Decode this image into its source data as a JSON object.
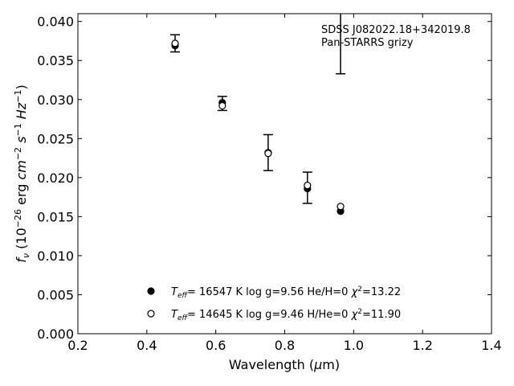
{
  "chart_data": {
    "type": "scatter",
    "title": "",
    "xlabel": "Wavelength (μm)",
    "ylabel": "f_ν (10^-26 erg cm^-2 s^-1 Hz^-1)",
    "xlim": [
      0.2,
      1.4
    ],
    "ylim": [
      0.0,
      0.041
    ],
    "x_ticks": [
      0.2,
      0.4,
      0.6,
      0.8,
      1.0,
      1.2,
      1.4
    ],
    "y_ticks": [
      0.0,
      0.005,
      0.01,
      0.015,
      0.02,
      0.025,
      0.03,
      0.035,
      0.04
    ],
    "x_tick_labels": [
      "0.2",
      "0.4",
      "0.6",
      "0.8",
      "1.0",
      "1.2",
      "1.4"
    ],
    "y_tick_labels": [
      "0.000",
      "0.005",
      "0.010",
      "0.015",
      "0.020",
      "0.025",
      "0.030",
      "0.035",
      "0.040"
    ],
    "grid": false,
    "annotation": [
      "SDSS J082022.18+342019.8",
      "Pan-STARRS grizy"
    ],
    "observed": {
      "x": [
        0.482,
        0.619,
        0.752,
        0.866,
        0.962
      ],
      "y": [
        0.0372,
        0.0295,
        0.0232,
        0.0187,
        0.0435
      ],
      "yerr": [
        0.0011,
        0.0009,
        0.0023,
        0.002,
        0.0102
      ]
    },
    "series": [
      {
        "name": "T_eff= 16547 K  log g=9.56  He/H=0  χ²=13.22",
        "marker": "filled-circle",
        "x": [
          0.482,
          0.619,
          0.752,
          0.866,
          0.962
        ],
        "y": [
          0.0369,
          0.0296,
          0.0232,
          0.0186,
          0.0157
        ]
      },
      {
        "name": "T_eff= 14645 K  log g=9.46  H/He=0  χ²=11.90",
        "marker": "open-circle",
        "x": [
          0.482,
          0.619,
          0.752,
          0.866,
          0.962
        ],
        "y": [
          0.0372,
          0.0292,
          0.0231,
          0.019,
          0.0163
        ]
      }
    ],
    "legend": {
      "placement": "bottom-center",
      "entries": [
        {
          "marker": "filled-circle",
          "teff": "= 16547 K  log g=9.56  He/H=0  ",
          "chi_val": "=13.22"
        },
        {
          "marker": "open-circle",
          "teff": "= 14645 K  log g=9.46  H/He=0  ",
          "chi_val": "=11.90"
        }
      ]
    },
    "colors": {
      "marker": "#000000",
      "background": "#ffffff"
    }
  }
}
